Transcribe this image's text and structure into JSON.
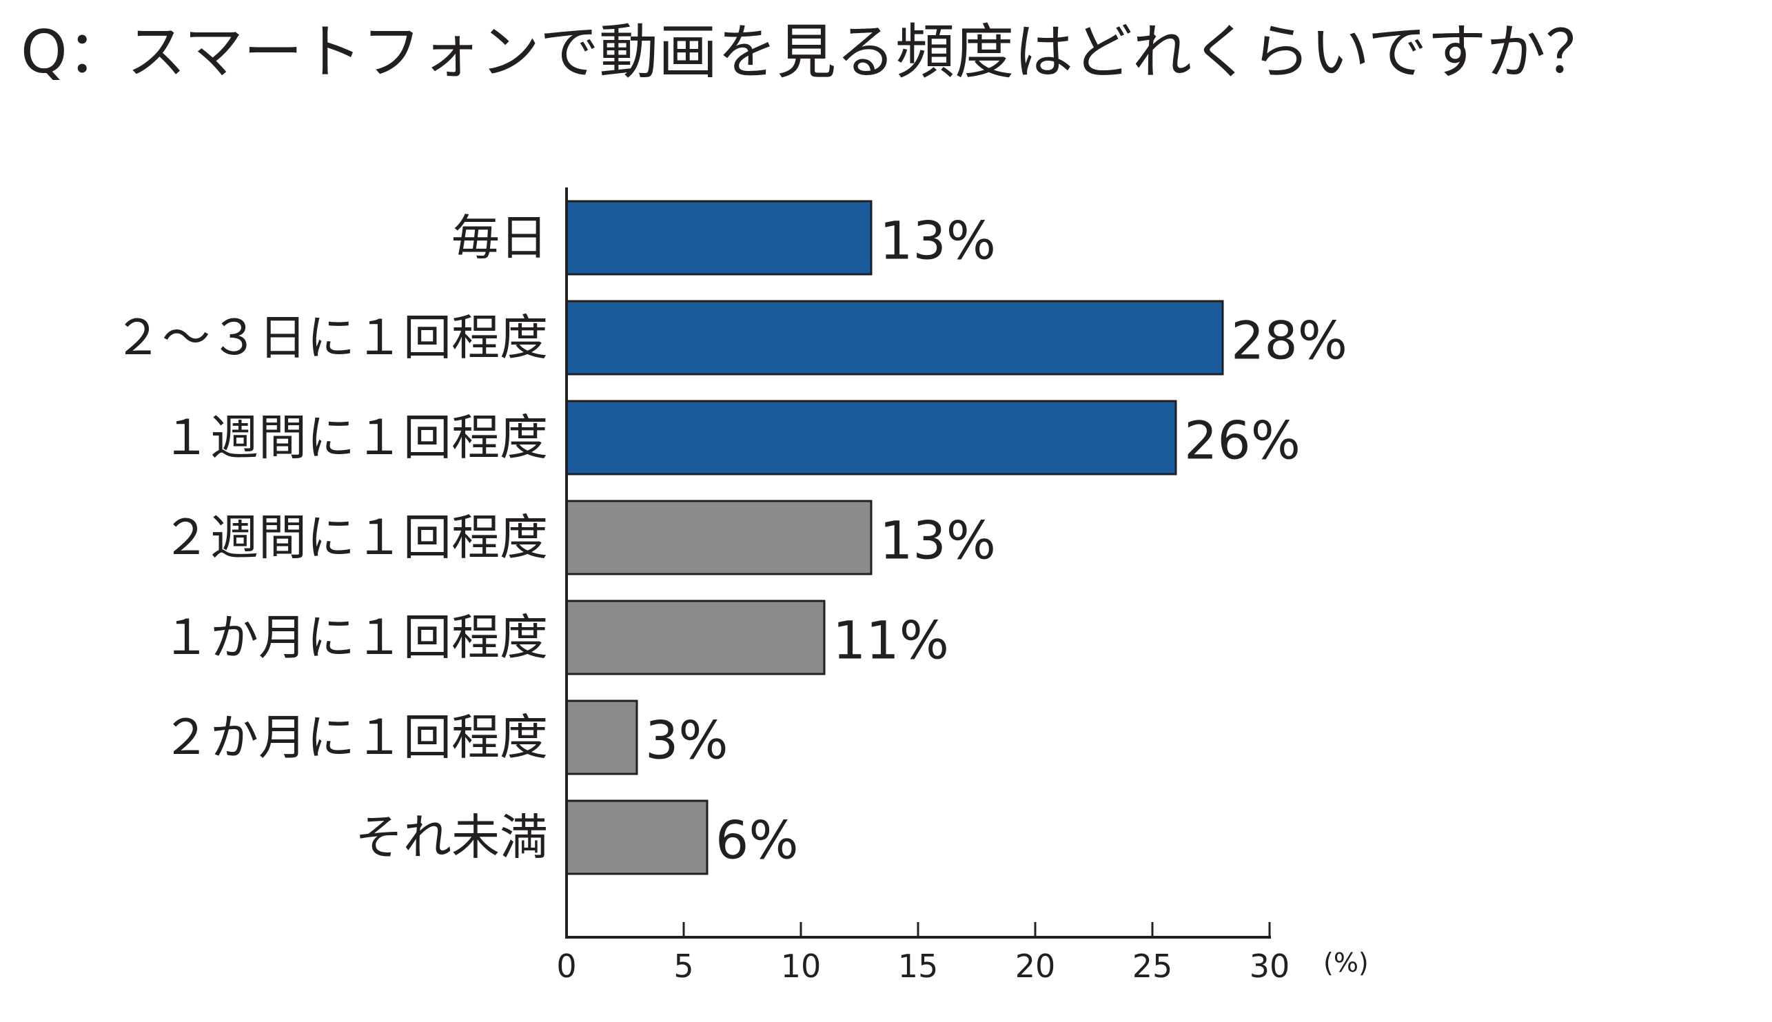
{
  "chart_data": {
    "type": "bar",
    "orientation": "horizontal",
    "title": "Q：スマートフォンで動画を見る頻度はどれくらいですか？",
    "categories": [
      "毎日",
      "２～３日に１回程度",
      "１週間に１回程度",
      "２週間に１回程度",
      "１か月に１回程度",
      "２か月に１回程度",
      "それ未満"
    ],
    "values": [
      13,
      28,
      26,
      13,
      11,
      3,
      6
    ],
    "value_labels": [
      "13%",
      "28%",
      "26%",
      "13%",
      "11%",
      "3%",
      "6%"
    ],
    "bar_colors": [
      "#1b5b9c",
      "#1b5b9c",
      "#1b5b9c",
      "#8a8b8b",
      "#8a8b8b",
      "#8a8b8b",
      "#8a8b8b"
    ],
    "xlim": [
      0,
      30
    ],
    "xticks": [
      0,
      5,
      10,
      15,
      20,
      25,
      30
    ],
    "xtick_labels": [
      "0",
      "5",
      "10",
      "15",
      "20",
      "25",
      "30"
    ],
    "unit": "(%)",
    "grid": false,
    "legend": "none"
  },
  "colors": {
    "axis": "#231f20",
    "text": "#231f20",
    "bar_outline": "#231f20",
    "background": "#ffffff"
  }
}
